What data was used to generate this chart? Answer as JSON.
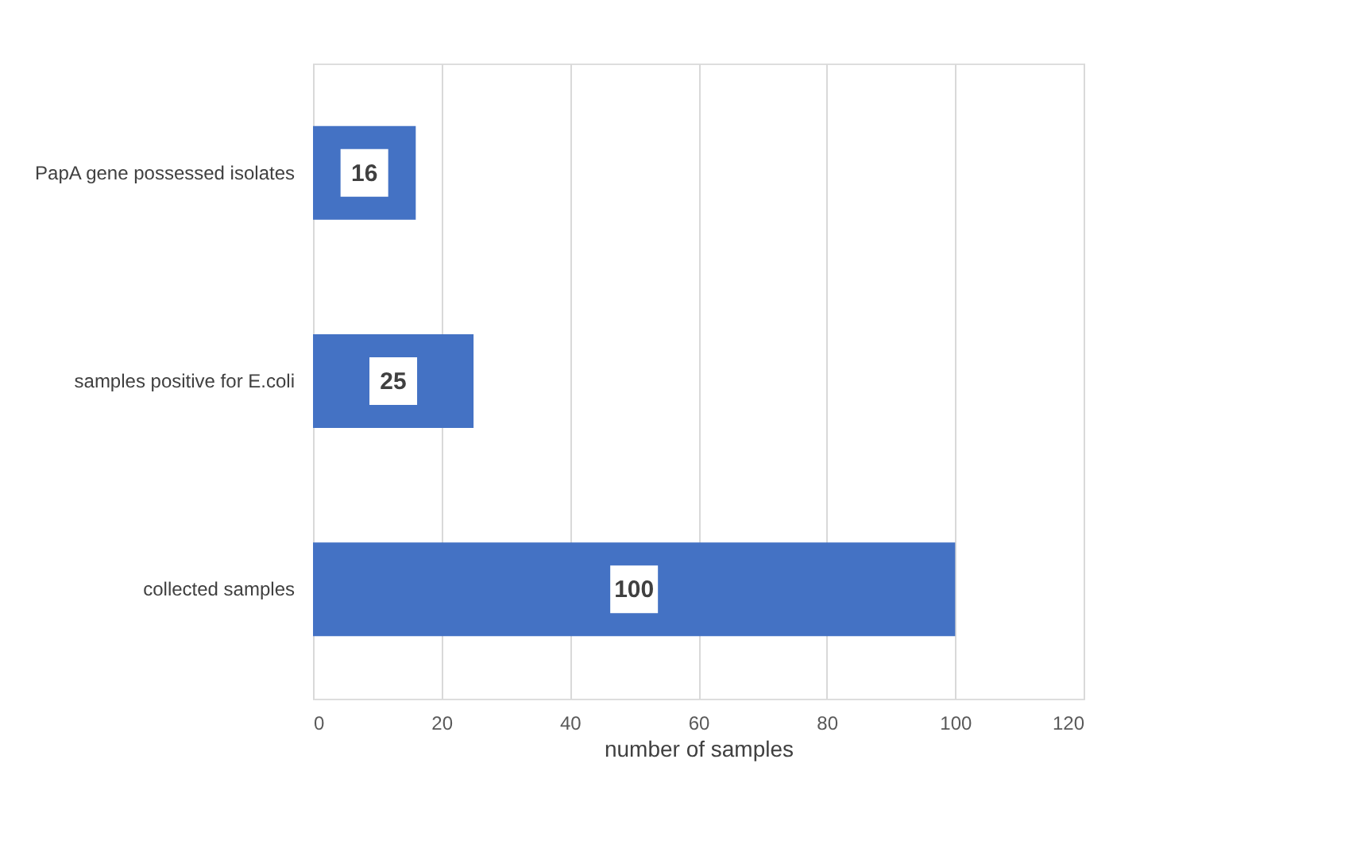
{
  "chart_data": {
    "type": "bar",
    "orientation": "horizontal",
    "xlabel": "number of samples",
    "categories": [
      "PapA gene possessed isolates",
      "samples positive for E.coli",
      "collected samples"
    ],
    "values": [
      16,
      25,
      100
    ],
    "color": "#4472c4",
    "xlim": [
      0,
      120
    ],
    "xticks": [
      0,
      20,
      40,
      60,
      80,
      100,
      120
    ],
    "grid": "x",
    "data_labels": true
  }
}
